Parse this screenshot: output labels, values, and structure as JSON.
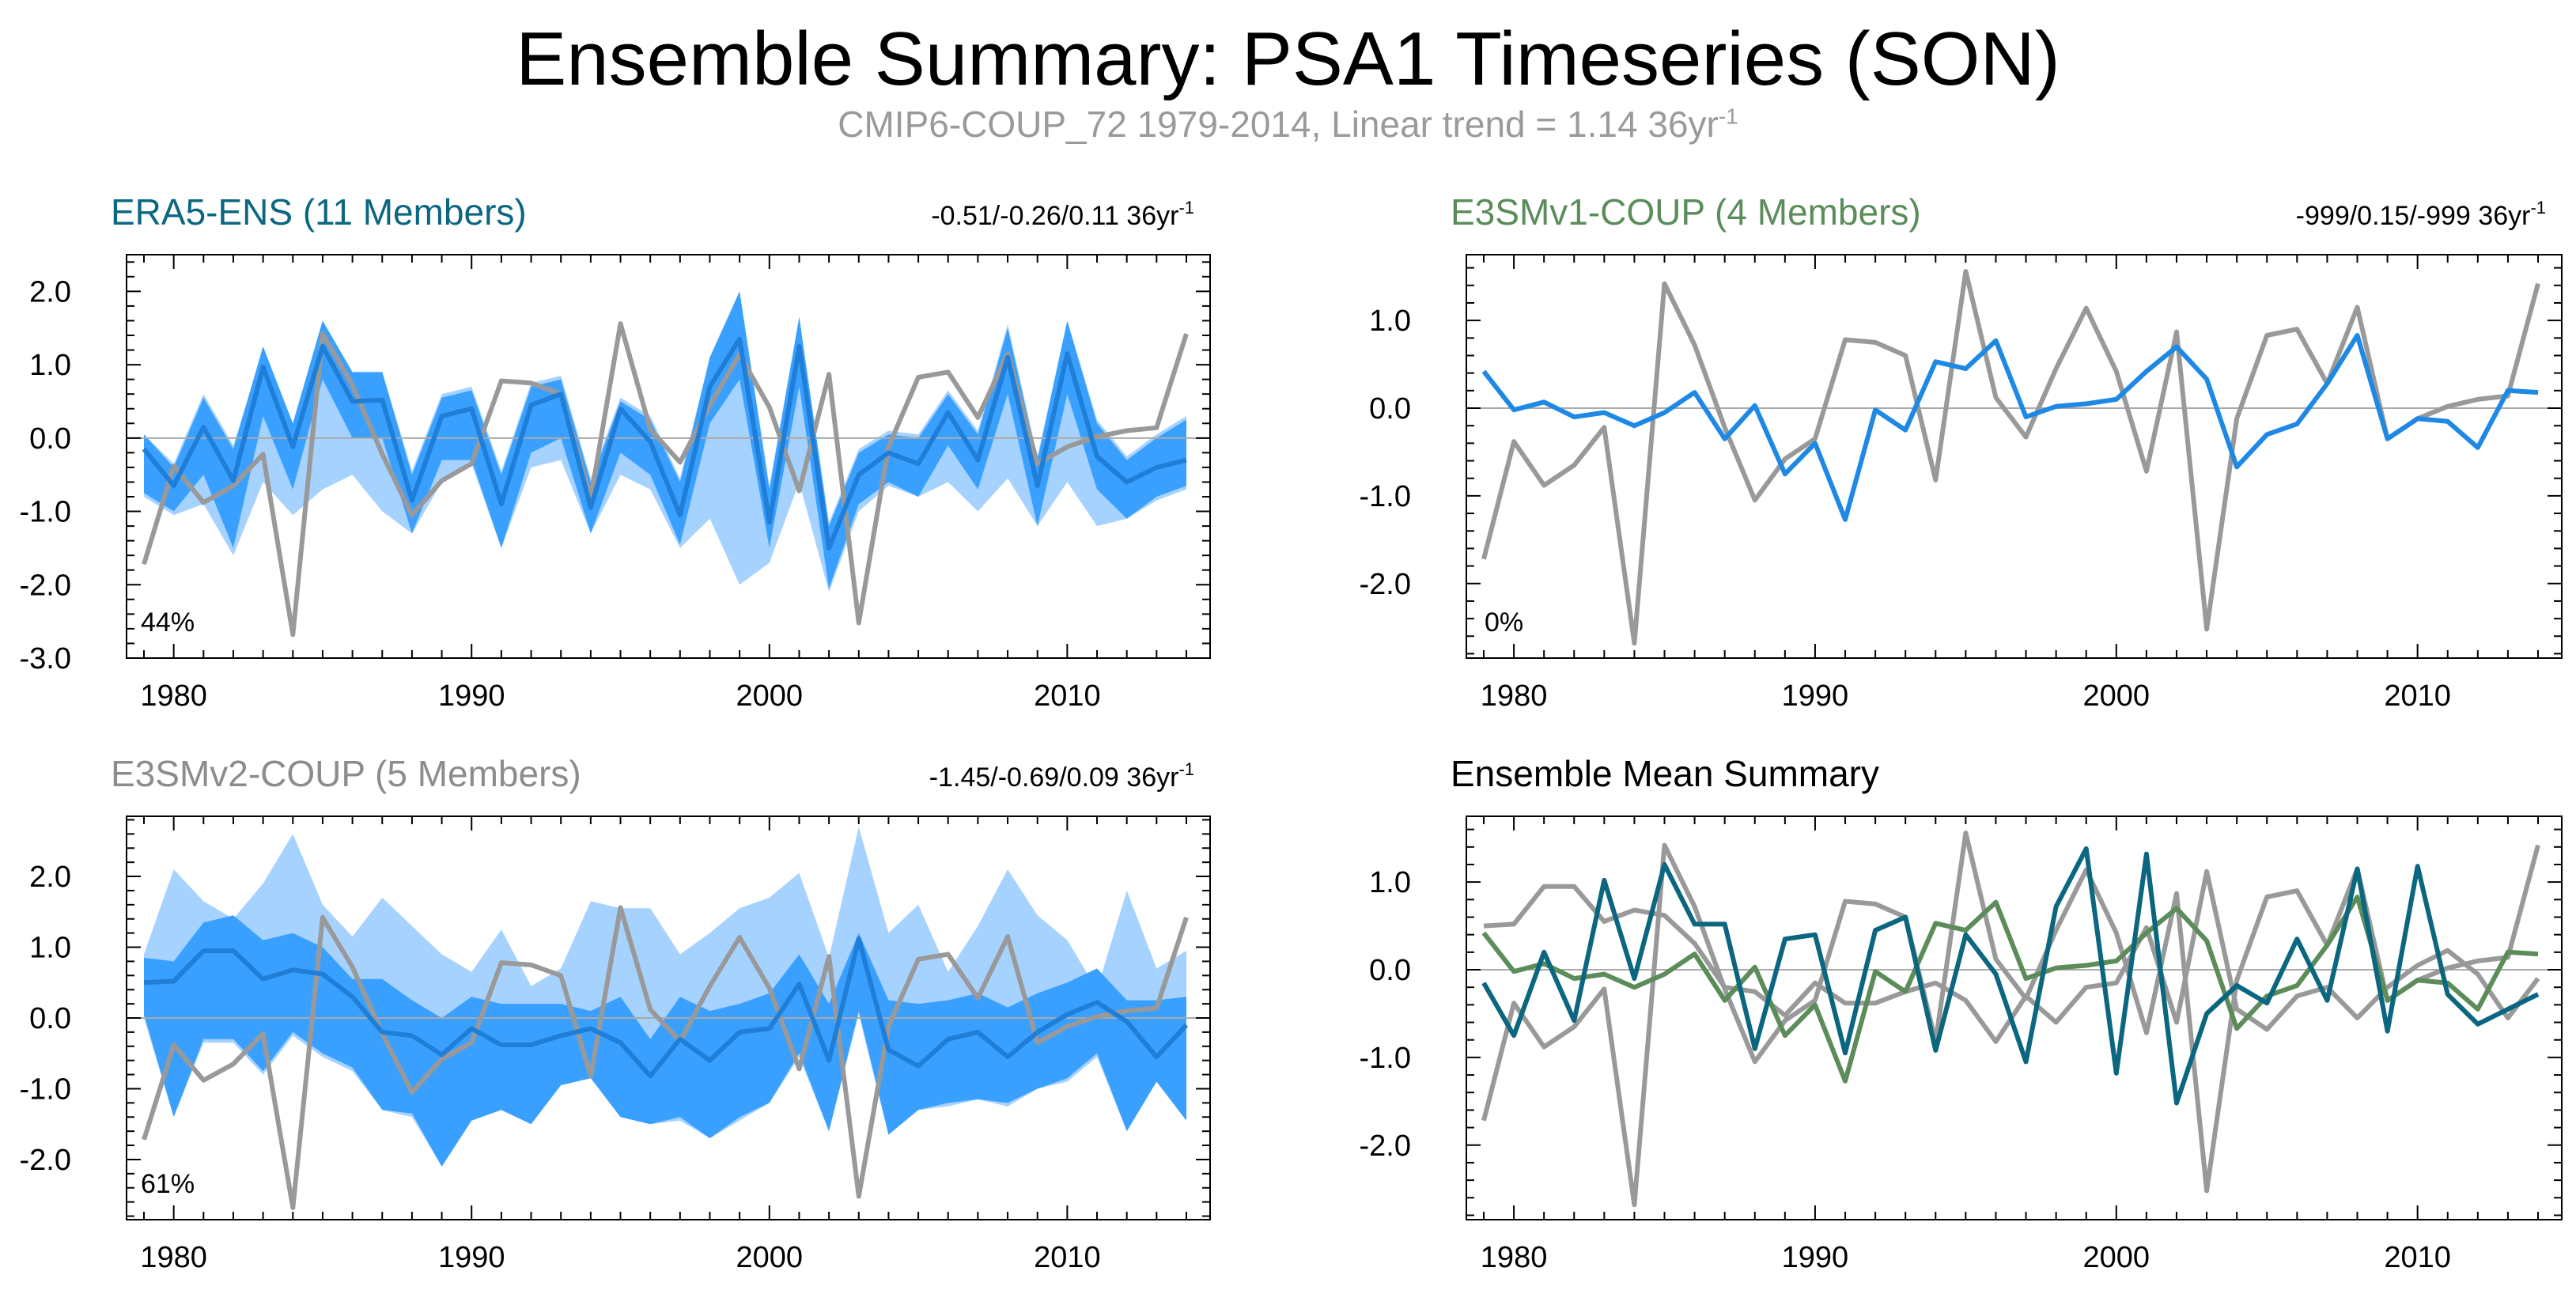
{
  "title": "Ensemble Summary: PSA1 Timeseries (SON)",
  "subtitle": "CMIP6-COUP_72 1979-2014, Linear trend = 1.14 36yr",
  "subtitle_sup": "-1",
  "colors": {
    "obs": "#999999",
    "era5_mean": "#1f7fd8",
    "outer_band": "#a6d2ff",
    "inner_band": "#3aa0ff",
    "v1_mean": "#1e88e5",
    "mean_era5": "#0b6680",
    "mean_v1": "#5b8c5a",
    "mean_v2": "#999999",
    "zero_line": "#aaaaaa",
    "era5_title": "#0b6680",
    "v1_title": "#5b8c5a",
    "v2_title": "#8c8c8c",
    "summary_title": "#000000"
  },
  "panels": [
    {
      "key": "era5",
      "title": "ERA5-ENS (11 Members)",
      "trend_text": "-0.51/-0.26/0.11 36yr",
      "trend_sup": "-1",
      "percent_label": "44%"
    },
    {
      "key": "v1",
      "title": "E3SMv1-COUP (4 Members)",
      "trend_text": "-999/0.15/-999 36yr",
      "trend_sup": "-1",
      "percent_label": "0%"
    },
    {
      "key": "v2",
      "title": "E3SMv2-COUP (5 Members)",
      "trend_text": "-1.45/-0.69/0.09 36yr",
      "trend_sup": "-1",
      "percent_label": "61%"
    },
    {
      "key": "mean",
      "title": "Ensemble Mean Summary",
      "trend_text": "",
      "trend_sup": "",
      "percent_label": ""
    }
  ],
  "chart_data": [
    {
      "type": "area",
      "name": "ERA5-ENS (11 Members)",
      "x": [
        1979,
        1980,
        1981,
        1982,
        1983,
        1984,
        1985,
        1986,
        1987,
        1988,
        1989,
        1990,
        1991,
        1992,
        1993,
        1994,
        1995,
        1996,
        1997,
        1998,
        1999,
        2000,
        2001,
        2002,
        2003,
        2004,
        2005,
        2006,
        2007,
        2008,
        2009,
        2010,
        2011,
        2012,
        2013,
        2014
      ],
      "xticks": [
        1980,
        1990,
        2000,
        2010
      ],
      "ylim": [
        -3.0,
        2.5
      ],
      "yticks": [
        -3.0,
        -2.0,
        -1.0,
        0.0,
        1.0,
        2.0
      ],
      "ytick_labels": [
        "-3.0",
        "-2.0",
        "-1.0",
        "0.0",
        "1.0",
        "2.0"
      ],
      "series": [
        {
          "name": "observations",
          "values": [
            -1.72,
            -0.38,
            -0.88,
            -0.65,
            -0.22,
            -2.68,
            1.42,
            0.72,
            -0.22,
            -1.05,
            -0.58,
            -0.35,
            0.78,
            0.75,
            0.6,
            -0.82,
            1.56,
            0.12,
            -0.33,
            0.45,
            1.14,
            0.42,
            -0.72,
            0.87,
            -2.52,
            -0.12,
            0.83,
            0.9,
            0.28,
            1.15,
            -0.35,
            -0.12,
            0.02,
            0.1,
            0.14,
            1.42
          ]
        },
        {
          "name": "ensemble mean",
          "values": [
            -0.15,
            -0.65,
            0.15,
            -0.58,
            0.97,
            -0.12,
            1.25,
            0.5,
            0.52,
            -0.85,
            0.3,
            0.4,
            -0.9,
            0.45,
            0.6,
            -0.95,
            0.4,
            -0.05,
            -1.05,
            0.7,
            1.35,
            -1.15,
            1.25,
            -1.5,
            -0.5,
            -0.2,
            -0.35,
            0.35,
            -0.3,
            1.1,
            -0.65,
            1.15,
            -0.25,
            -0.6,
            -0.4,
            -0.3
          ]
        },
        {
          "name": "inner range low",
          "values": [
            -0.75,
            -1.0,
            -0.5,
            -1.5,
            0.3,
            -0.7,
            0.8,
            0.0,
            0.0,
            -1.3,
            -0.3,
            -0.3,
            -1.5,
            -0.2,
            0.0,
            -1.3,
            -0.2,
            -0.5,
            -1.45,
            0.2,
            0.8,
            -1.5,
            0.7,
            -2.05,
            -0.9,
            -0.6,
            -0.8,
            -0.1,
            -0.7,
            0.6,
            -1.2,
            0.6,
            -0.7,
            -1.1,
            -0.8,
            -0.65
          ]
        },
        {
          "name": "inner range high",
          "values": [
            0.05,
            -0.4,
            0.55,
            -0.15,
            1.25,
            0.2,
            1.6,
            0.9,
            0.9,
            -0.5,
            0.55,
            0.65,
            -0.5,
            0.7,
            0.8,
            -0.6,
            0.5,
            0.25,
            -0.6,
            1.1,
            2.0,
            -0.7,
            1.65,
            -1.2,
            -0.2,
            0.05,
            0.0,
            0.6,
            0.05,
            1.5,
            -0.3,
            1.6,
            0.2,
            -0.3,
            0.0,
            0.25
          ]
        },
        {
          "name": "outer range low",
          "values": [
            -0.8,
            -1.05,
            -0.9,
            -1.6,
            -0.6,
            -1.05,
            -0.7,
            -0.5,
            -1.0,
            -1.3,
            -0.6,
            -0.35,
            -1.5,
            -0.4,
            -0.3,
            -1.3,
            -0.5,
            -0.7,
            -1.5,
            -1.1,
            -2.0,
            -1.7,
            -0.6,
            -2.1,
            -1.0,
            -0.65,
            -0.8,
            -0.6,
            -1.0,
            -0.55,
            -1.2,
            -0.6,
            -1.2,
            -1.1,
            -0.85,
            -0.7
          ]
        },
        {
          "name": "outer range high",
          "values": [
            0.05,
            -0.35,
            0.6,
            -0.1,
            1.2,
            0.2,
            1.6,
            0.9,
            0.9,
            -0.45,
            0.6,
            0.7,
            -0.45,
            0.75,
            0.85,
            -0.55,
            0.55,
            0.3,
            -0.55,
            1.1,
            2.0,
            -0.65,
            1.65,
            -1.15,
            -0.15,
            0.1,
            0.05,
            0.65,
            0.1,
            1.55,
            -0.25,
            1.6,
            0.25,
            -0.25,
            0.05,
            0.3
          ]
        }
      ]
    },
    {
      "type": "line",
      "name": "E3SMv1-COUP (4 Members)",
      "x": [
        1979,
        1980,
        1981,
        1982,
        1983,
        1984,
        1985,
        1986,
        1987,
        1988,
        1989,
        1990,
        1991,
        1992,
        1993,
        1994,
        1995,
        1996,
        1997,
        1998,
        1999,
        2000,
        2001,
        2002,
        2003,
        2004,
        2005,
        2006,
        2007,
        2008,
        2009,
        2010,
        2011,
        2012,
        2013,
        2014
      ],
      "xticks": [
        1980,
        1990,
        2000,
        2010
      ],
      "ylim": [
        -2.85,
        1.75
      ],
      "yticks": [
        -2.0,
        -1.0,
        0.0,
        1.0
      ],
      "ytick_labels": [
        "-2.0",
        "-1.0",
        "0.0",
        "1.0"
      ],
      "series": [
        {
          "name": "observations",
          "values": [
            -1.72,
            -0.38,
            -0.88,
            -0.65,
            -0.22,
            -2.68,
            1.42,
            0.72,
            -0.22,
            -1.05,
            -0.58,
            -0.35,
            0.78,
            0.75,
            0.6,
            -0.82,
            1.56,
            0.12,
            -0.33,
            0.45,
            1.14,
            0.42,
            -0.72,
            0.87,
            -2.52,
            -0.12,
            0.83,
            0.9,
            0.28,
            1.15,
            -0.35,
            -0.12,
            0.02,
            0.1,
            0.14,
            1.42
          ]
        },
        {
          "name": "ensemble mean",
          "values": [
            0.42,
            -0.02,
            0.07,
            -0.1,
            -0.05,
            -0.2,
            -0.05,
            0.18,
            -0.35,
            0.03,
            -0.75,
            -0.4,
            -1.27,
            -0.02,
            -0.25,
            0.53,
            0.45,
            0.77,
            -0.1,
            0.02,
            0.05,
            0.1,
            0.42,
            0.7,
            0.33,
            -0.67,
            -0.3,
            -0.18,
            0.28,
            0.83,
            -0.35,
            -0.12,
            -0.15,
            -0.45,
            0.2,
            0.18
          ]
        }
      ]
    },
    {
      "type": "area",
      "name": "E3SMv2-COUP (5 Members)",
      "x": [
        1979,
        1980,
        1981,
        1982,
        1983,
        1984,
        1985,
        1986,
        1987,
        1988,
        1989,
        1990,
        1991,
        1992,
        1993,
        1994,
        1995,
        1996,
        1997,
        1998,
        1999,
        2000,
        2001,
        2002,
        2003,
        2004,
        2005,
        2006,
        2007,
        2008,
        2009,
        2010,
        2011,
        2012,
        2013,
        2014
      ],
      "xticks": [
        1980,
        1990,
        2000,
        2010
      ],
      "ylim": [
        -2.85,
        2.85
      ],
      "yticks": [
        -2.0,
        -1.0,
        0.0,
        1.0,
        2.0
      ],
      "ytick_labels": [
        "-2.0",
        "-1.0",
        "0.0",
        "1.0",
        "2.0"
      ],
      "series": [
        {
          "name": "observations",
          "values": [
            -1.72,
            -0.38,
            -0.88,
            -0.65,
            -0.22,
            -2.68,
            1.42,
            0.72,
            -0.22,
            -1.05,
            -0.58,
            -0.35,
            0.78,
            0.75,
            0.6,
            -0.82,
            1.56,
            0.12,
            -0.33,
            0.45,
            1.14,
            0.42,
            -0.72,
            0.87,
            -2.52,
            -0.12,
            0.83,
            0.9,
            0.28,
            1.15,
            -0.35,
            -0.12,
            0.02,
            0.1,
            0.14,
            1.42
          ]
        },
        {
          "name": "ensemble mean",
          "values": [
            0.5,
            0.52,
            0.95,
            0.95,
            0.55,
            0.68,
            0.62,
            0.3,
            -0.2,
            -0.25,
            -0.52,
            -0.15,
            -0.38,
            -0.38,
            -0.25,
            -0.15,
            -0.35,
            -0.82,
            -0.3,
            -0.6,
            -0.2,
            -0.15,
            0.48,
            -0.6,
            1.12,
            -0.45,
            -0.68,
            -0.3,
            -0.2,
            -0.55,
            -0.2,
            0.05,
            0.22,
            -0.05,
            -0.55,
            -0.1
          ]
        },
        {
          "name": "inner range low",
          "values": [
            0.05,
            -1.4,
            -0.3,
            -0.3,
            -0.75,
            -0.2,
            -0.5,
            -0.7,
            -1.3,
            -1.35,
            -2.1,
            -1.45,
            -1.3,
            -1.5,
            -0.95,
            -0.85,
            -1.4,
            -1.5,
            -1.4,
            -1.7,
            -1.4,
            -1.2,
            -0.5,
            -1.6,
            0.1,
            -1.65,
            -1.3,
            -1.2,
            -1.15,
            -1.2,
            -1.0,
            -0.85,
            -0.5,
            -1.6,
            -0.9,
            -1.45
          ]
        },
        {
          "name": "inner range high",
          "values": [
            0.85,
            0.8,
            1.35,
            1.45,
            1.1,
            1.2,
            1.0,
            0.55,
            0.55,
            0.25,
            0.0,
            0.3,
            0.2,
            0.2,
            0.2,
            0.1,
            0.3,
            -0.3,
            0.3,
            0.1,
            0.2,
            0.35,
            0.9,
            0.2,
            1.2,
            0.25,
            0.2,
            0.25,
            0.35,
            0.15,
            0.35,
            0.5,
            0.7,
            0.25,
            0.25,
            0.3
          ]
        },
        {
          "name": "outer range low",
          "values": [
            0.0,
            -1.4,
            -0.35,
            -0.35,
            -0.8,
            -0.25,
            -0.55,
            -0.75,
            -1.3,
            -1.4,
            -2.1,
            -1.45,
            -1.3,
            -1.5,
            -0.95,
            -0.85,
            -1.4,
            -1.5,
            -1.45,
            -1.7,
            -1.45,
            -1.2,
            -0.55,
            -1.6,
            0.05,
            -1.65,
            -1.3,
            -1.25,
            -1.15,
            -1.25,
            -1.0,
            -0.9,
            -0.55,
            -1.6,
            -0.9,
            -1.45
          ]
        },
        {
          "name": "outer range high",
          "values": [
            0.9,
            2.1,
            1.65,
            1.4,
            1.9,
            2.6,
            1.6,
            1.15,
            1.7,
            1.3,
            0.9,
            0.65,
            1.25,
            0.45,
            0.7,
            1.65,
            1.55,
            1.55,
            0.9,
            1.2,
            1.55,
            1.7,
            2.05,
            0.85,
            2.7,
            1.2,
            1.6,
            0.65,
            1.3,
            2.1,
            1.45,
            1.1,
            0.4,
            1.8,
            0.7,
            0.95
          ]
        }
      ]
    },
    {
      "type": "line",
      "name": "Ensemble Mean Summary",
      "x": [
        1979,
        1980,
        1981,
        1982,
        1983,
        1984,
        1985,
        1986,
        1987,
        1988,
        1989,
        1990,
        1991,
        1992,
        1993,
        1994,
        1995,
        1996,
        1997,
        1998,
        1999,
        2000,
        2001,
        2002,
        2003,
        2004,
        2005,
        2006,
        2007,
        2008,
        2009,
        2010,
        2011,
        2012,
        2013,
        2014
      ],
      "xticks": [
        1980,
        1990,
        2000,
        2010
      ],
      "ylim": [
        -2.85,
        1.75
      ],
      "yticks": [
        -2.0,
        -1.0,
        0.0,
        1.0
      ],
      "ytick_labels": [
        "-2.0",
        "-1.0",
        "0.0",
        "1.0"
      ],
      "series": [
        {
          "name": "observations",
          "values": [
            -1.72,
            -0.38,
            -0.88,
            -0.65,
            -0.22,
            -2.68,
            1.42,
            0.72,
            -0.22,
            -1.05,
            -0.58,
            -0.35,
            0.78,
            0.75,
            0.6,
            -0.82,
            1.56,
            0.12,
            -0.33,
            0.45,
            1.14,
            0.42,
            -0.72,
            0.87,
            -2.52,
            -0.12,
            0.83,
            0.9,
            0.28,
            1.15,
            -0.35,
            -0.12,
            0.02,
            0.1,
            0.14,
            1.42
          ]
        },
        {
          "name": "E3SMv2-COUP",
          "values": [
            0.5,
            0.52,
            0.95,
            0.95,
            0.55,
            0.68,
            0.62,
            0.3,
            -0.2,
            -0.25,
            -0.52,
            -0.15,
            -0.38,
            -0.38,
            -0.25,
            -0.15,
            -0.35,
            -0.82,
            -0.3,
            -0.6,
            -0.2,
            -0.15,
            0.48,
            -0.6,
            1.12,
            -0.45,
            -0.68,
            -0.3,
            -0.2,
            -0.55,
            -0.2,
            0.05,
            0.22,
            -0.05,
            -0.55,
            -0.1
          ]
        },
        {
          "name": "E3SMv1-COUP",
          "values": [
            0.42,
            -0.02,
            0.07,
            -0.1,
            -0.05,
            -0.2,
            -0.05,
            0.18,
            -0.35,
            0.03,
            -0.75,
            -0.4,
            -1.27,
            -0.02,
            -0.25,
            0.53,
            0.45,
            0.77,
            -0.1,
            0.02,
            0.05,
            0.1,
            0.42,
            0.7,
            0.33,
            -0.67,
            -0.3,
            -0.18,
            0.28,
            0.83,
            -0.35,
            -0.12,
            -0.15,
            -0.45,
            0.2,
            0.18
          ]
        },
        {
          "name": "ERA5-ENS",
          "values": [
            -0.15,
            -0.75,
            0.2,
            -0.58,
            1.02,
            -0.1,
            1.2,
            0.52,
            0.52,
            -0.9,
            0.35,
            0.4,
            -0.95,
            0.45,
            0.6,
            -0.92,
            0.4,
            -0.05,
            -1.05,
            0.72,
            1.38,
            -1.18,
            1.32,
            -1.52,
            -0.5,
            -0.18,
            -0.38,
            0.35,
            -0.35,
            1.15,
            -0.7,
            1.18,
            -0.28,
            -0.62,
            -0.45,
            -0.28
          ]
        }
      ]
    }
  ]
}
